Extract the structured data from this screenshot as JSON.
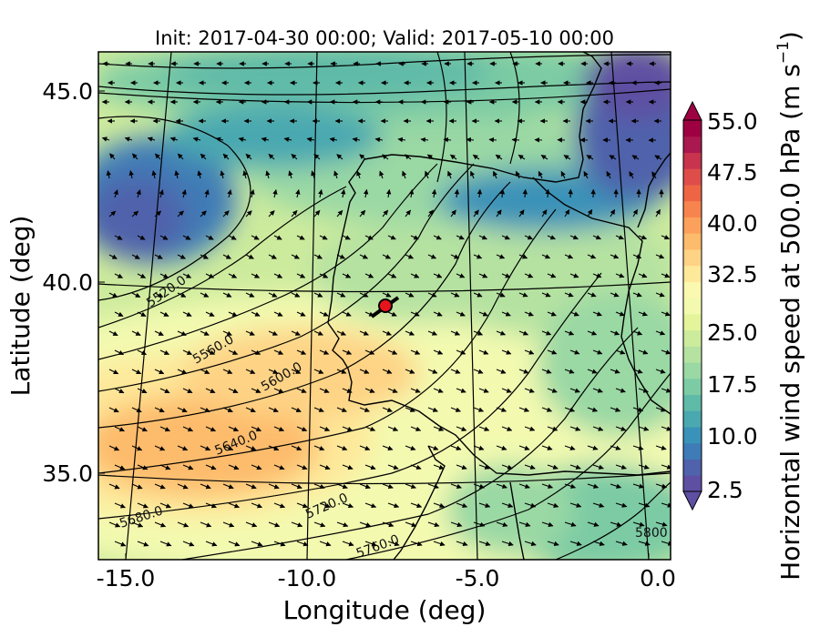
{
  "title": "Init: 2017-04-30 00:00; Valid: 2017-05-10 00:00",
  "xlabel": "Longitude (deg)",
  "ylabel": "Latitude (deg)",
  "colorbar": {
    "label": "Horizontal wind speed at 500.0 hPa (m s",
    "label_sup": "−1",
    "label_end": ")",
    "ticks": [
      "55.0",
      "47.5",
      "40.0",
      "32.5",
      "25.0",
      "17.5",
      "10.0",
      "2.5"
    ],
    "range": [
      2.5,
      55.0
    ],
    "colors": [
      "#5e4fa2",
      "#4f62ab",
      "#3f7bb6",
      "#3a92b8",
      "#4aa8b0",
      "#5fbaa8",
      "#7ccba4",
      "#9ad8a4",
      "#b5e2a1",
      "#cdeb9d",
      "#e4f49b",
      "#f3fab0",
      "#fbf8b0",
      "#fee89a",
      "#fed385",
      "#fdbb6c",
      "#fba15b",
      "#f7844e",
      "#ee6545",
      "#de4d4a",
      "#c8334d",
      "#a9184e",
      "#9e0142"
    ]
  },
  "x_ticks": [
    "-15.0",
    "-10.0",
    "-5.0",
    "0.0"
  ],
  "y_ticks": [
    "45.0",
    "40.0",
    "35.0"
  ],
  "contour_labels": [
    "5520.0",
    "5560.0",
    "5600.0",
    "5640.0",
    "5680.0",
    "5720.0",
    "5760.0",
    "5800"
  ],
  "marker": {
    "lon": -7.8,
    "lat": 39.3,
    "color": "#e8141c"
  },
  "chart_data": {
    "type": "map",
    "field": "Horizontal wind speed at 500.0 hPa",
    "units": "m s-1",
    "xlim": [
      -15.8,
      0.3
    ],
    "ylim": [
      32.8,
      46.1
    ],
    "contours": "500 hPa geopotential height",
    "contour_levels": [
      5520.0,
      5560.0,
      5600.0,
      5640.0,
      5680.0,
      5720.0,
      5760.0,
      5800
    ]
  }
}
